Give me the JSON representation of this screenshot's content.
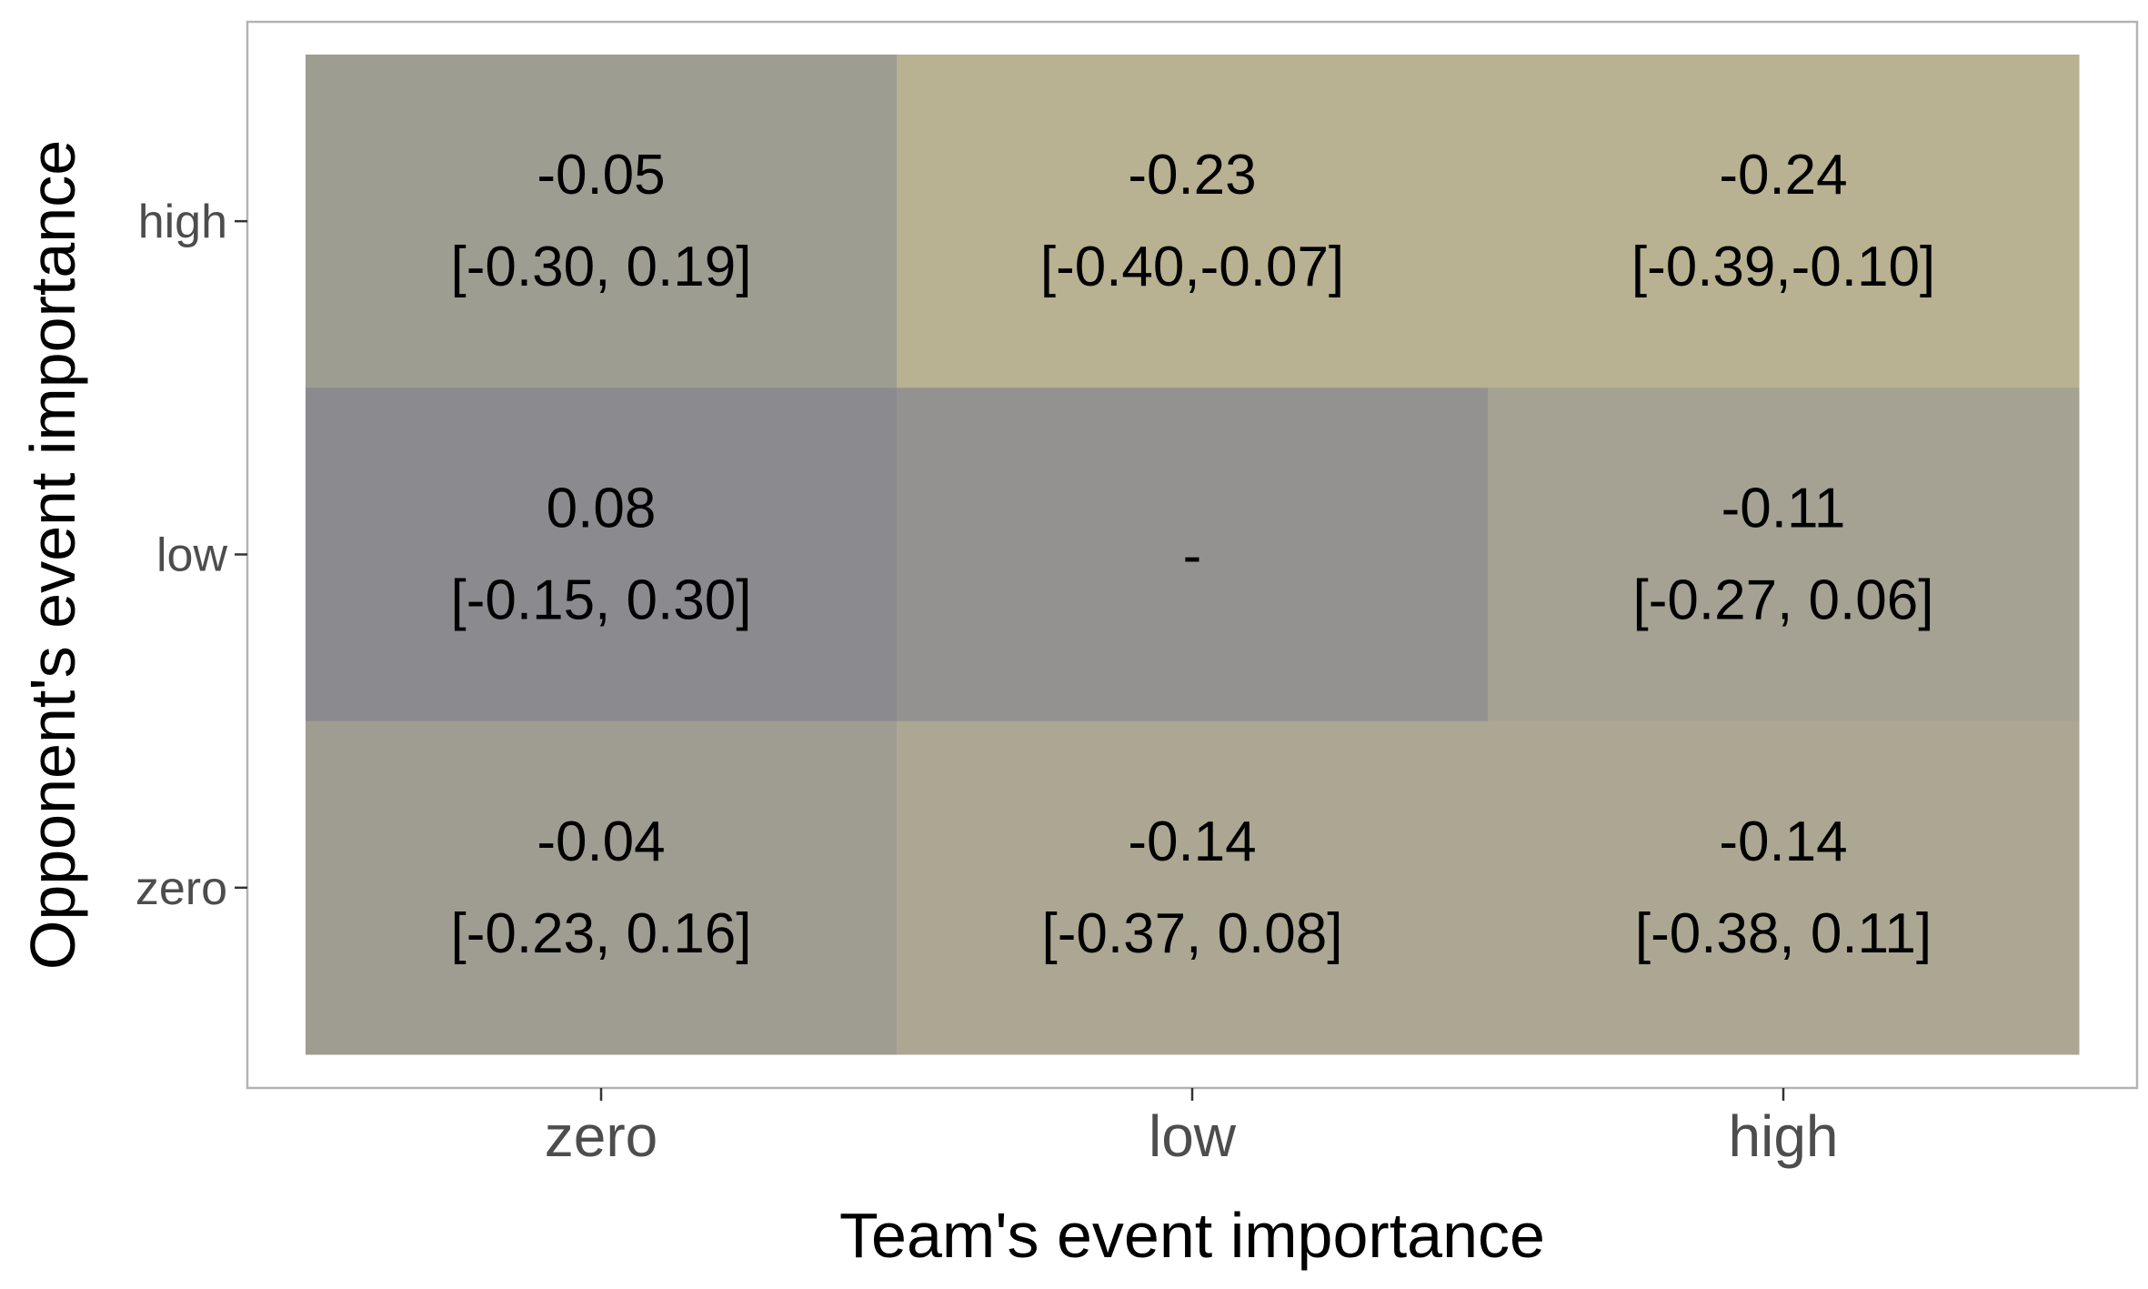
{
  "chart_data": {
    "type": "heatmap",
    "xlabel": "Team's event importance",
    "ylabel": "Opponent's event importance",
    "x_categories": [
      "zero",
      "low",
      "high"
    ],
    "y_categories": [
      "zero",
      "low",
      "high"
    ],
    "grid": false,
    "legend": "none",
    "cells": [
      {
        "x": "zero",
        "y": "high",
        "value": "-0.05",
        "ci": "[-0.30, 0.19]",
        "color": "#9e9d92"
      },
      {
        "x": "low",
        "y": "high",
        "value": "-0.23",
        "ci": "[-0.40,-0.07]",
        "color": "#b8b192"
      },
      {
        "x": "high",
        "y": "high",
        "value": "-0.24",
        "ci": "[-0.39,-0.10]",
        "color": "#b8b192"
      },
      {
        "x": "zero",
        "y": "low",
        "value": "0.08",
        "ci": "[-0.15, 0.30]",
        "color": "#8b8a8e"
      },
      {
        "x": "low",
        "y": "low",
        "value": "-",
        "ci": "",
        "color": "#939291"
      },
      {
        "x": "high",
        "y": "low",
        "value": "-0.11",
        "ci": "[-0.27, 0.06]",
        "color": "#a5a293"
      },
      {
        "x": "zero",
        "y": "zero",
        "value": "-0.04",
        "ci": "[-0.23, 0.16]",
        "color": "#9f9c92"
      },
      {
        "x": "low",
        "y": "zero",
        "value": "-0.14",
        "ci": "[-0.37, 0.08]",
        "color": "#aca792"
      },
      {
        "x": "high",
        "y": "zero",
        "value": "-0.14",
        "ci": "[-0.38, 0.11]",
        "color": "#aca792"
      }
    ]
  }
}
